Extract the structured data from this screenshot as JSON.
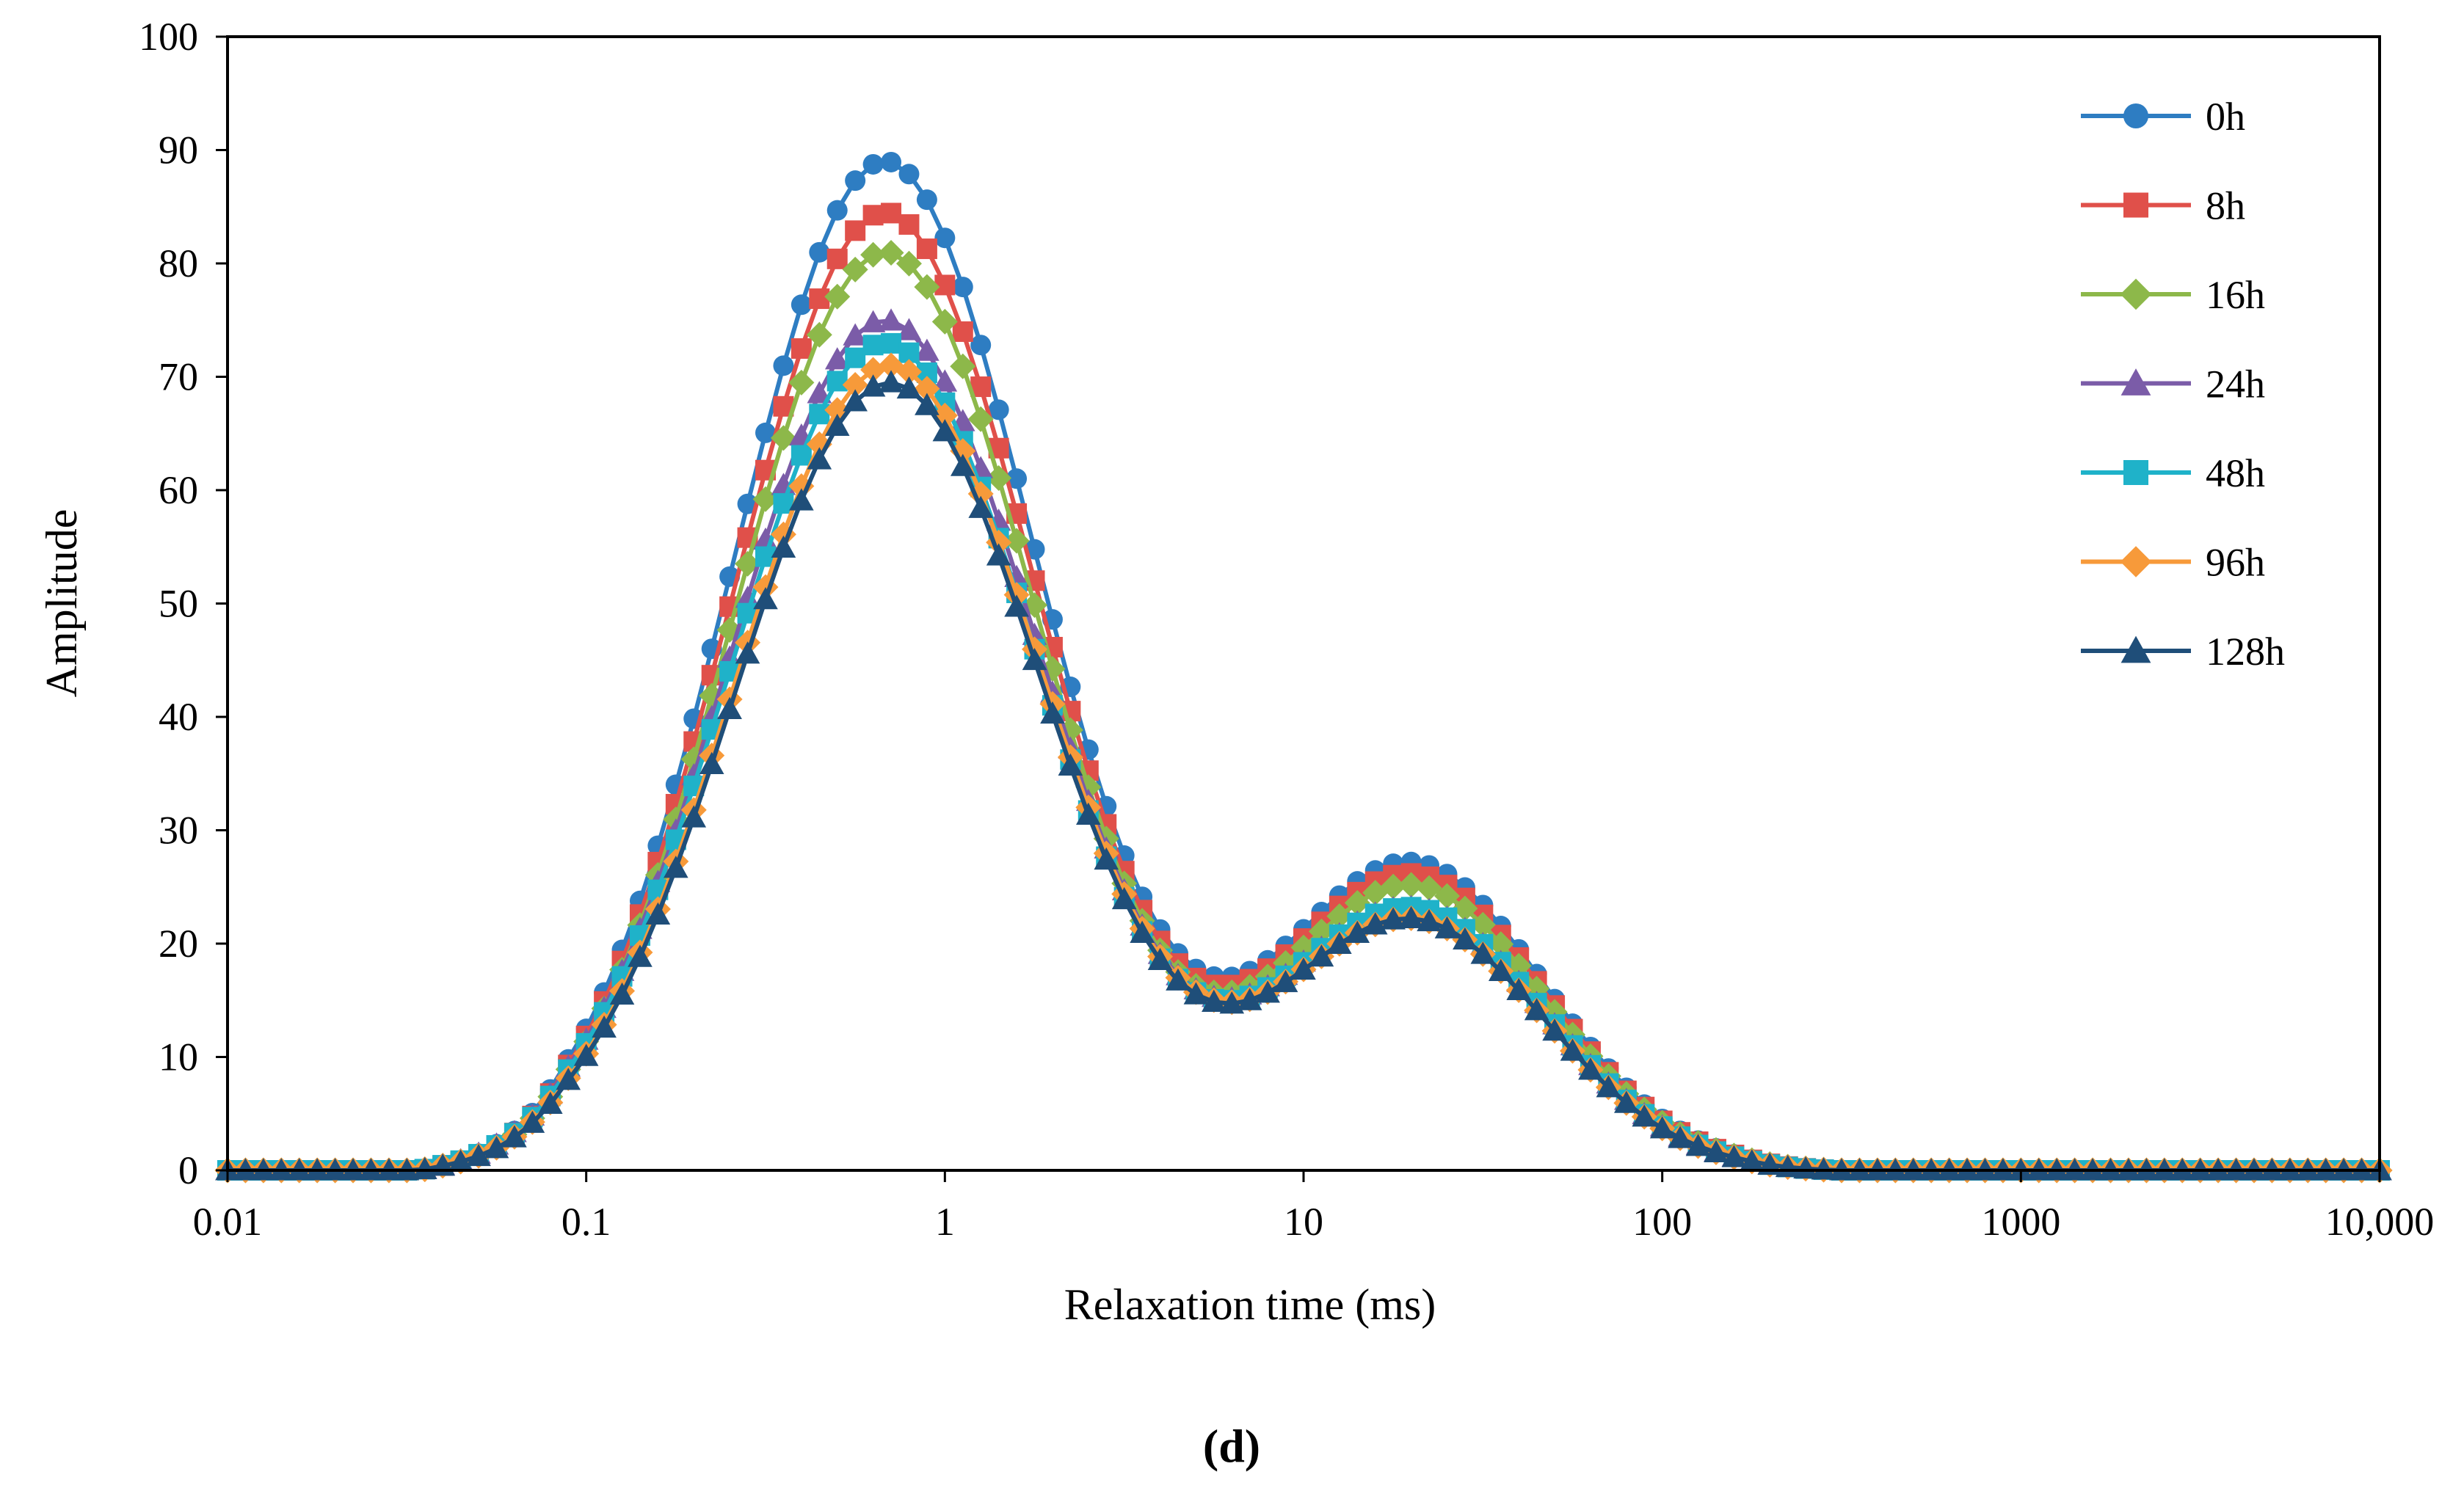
{
  "chart_data": {
    "type": "line",
    "title": "",
    "xlabel": "Relaxation time (ms)",
    "ylabel": "Amplitude",
    "xscale": "log",
    "xlim": [
      0.01,
      10000
    ],
    "ylim": [
      0,
      100
    ],
    "xticks": [
      0.01,
      0.1,
      1,
      10,
      100,
      1000,
      10000
    ],
    "xtick_labels": [
      "0.01",
      "0.1",
      "1",
      "10",
      "100",
      "1000",
      "10,000"
    ],
    "yticks": [
      0,
      10,
      20,
      30,
      40,
      50,
      60,
      70,
      80,
      90,
      100
    ],
    "ytick_labels": [
      "0",
      "10",
      "20",
      "30",
      "40",
      "50",
      "60",
      "70",
      "80",
      "90",
      "100"
    ],
    "grid": false,
    "legend_position": "top-right",
    "caption": "(d)",
    "series": [
      {
        "name": "0h",
        "color": "#2E7DC2",
        "marker": "circle",
        "components": [
          {
            "amp": 89,
            "center": 0.68,
            "width": 0.42
          },
          {
            "amp": 27,
            "center": 20,
            "width": 0.37
          }
        ],
        "peak": 89,
        "plateau": 28
      },
      {
        "name": "8h",
        "color": "#E0504A",
        "marker": "square",
        "components": [
          {
            "amp": 84.5,
            "center": 0.68,
            "width": 0.42
          },
          {
            "amp": 26,
            "center": 20,
            "width": 0.37
          }
        ],
        "peak": 85,
        "plateau": 27
      },
      {
        "name": "16h",
        "color": "#8DB84A",
        "marker": "diamond",
        "components": [
          {
            "amp": 81,
            "center": 0.68,
            "width": 0.42
          },
          {
            "amp": 25,
            "center": 20,
            "width": 0.37
          }
        ],
        "peak": 81,
        "plateau": 26
      },
      {
        "name": "24h",
        "color": "#7B5CA8",
        "marker": "triangle",
        "components": [
          {
            "amp": 75,
            "center": 0.68,
            "width": 0.43
          },
          {
            "amp": 23,
            "center": 20,
            "width": 0.37
          }
        ],
        "peak": 75,
        "plateau": 24
      },
      {
        "name": "48h",
        "color": "#1FB2C9",
        "marker": "square",
        "components": [
          {
            "amp": 73,
            "center": 0.68,
            "width": 0.43
          },
          {
            "amp": 23,
            "center": 20,
            "width": 0.37
          }
        ],
        "peak": 73,
        "plateau": 24
      },
      {
        "name": "96h",
        "color": "#F79A3A",
        "marker": "diamond",
        "components": [
          {
            "amp": 71,
            "center": 0.7,
            "width": 0.43
          },
          {
            "amp": 22,
            "center": 20,
            "width": 0.37
          }
        ],
        "peak": 71,
        "plateau": 23
      },
      {
        "name": "128h",
        "color": "#1F4E79",
        "marker": "triangle",
        "components": [
          {
            "amp": 69.5,
            "center": 0.7,
            "width": 0.43
          },
          {
            "amp": 22,
            "center": 20,
            "width": 0.37
          }
        ],
        "peak": 70,
        "plateau": 22
      }
    ]
  }
}
